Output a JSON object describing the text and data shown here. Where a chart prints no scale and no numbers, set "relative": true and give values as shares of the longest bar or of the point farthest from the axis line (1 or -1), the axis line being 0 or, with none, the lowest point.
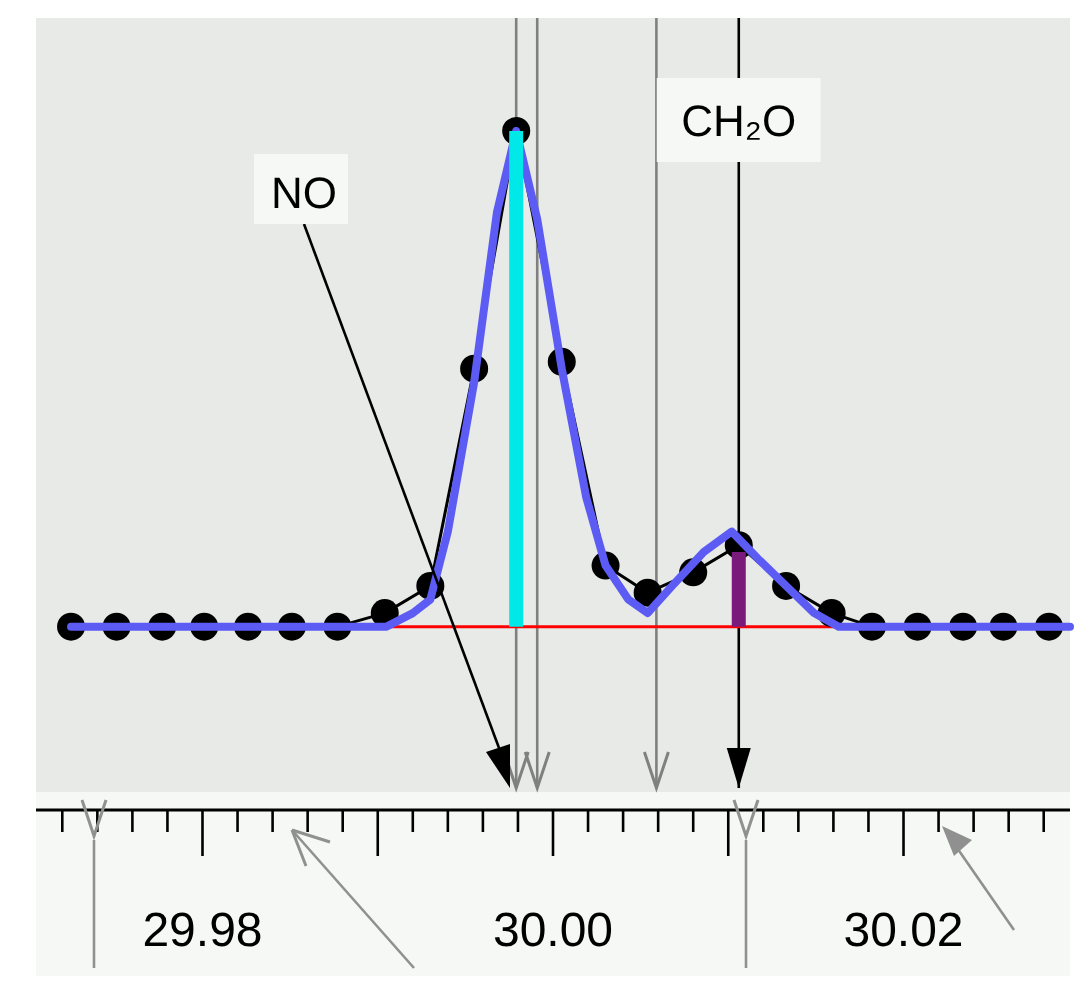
{
  "chart_data": {
    "type": "line",
    "relative": true,
    "tick_labels": "x",
    "grid": false,
    "xlim": [
      29.9705,
      30.0295
    ],
    "xticks": [
      {
        "value": 29.98,
        "label": "29.98"
      },
      {
        "value": 30.0,
        "label": "30.00"
      },
      {
        "value": 30.02,
        "label": "30.02"
      }
    ],
    "series": [
      {
        "color": "#00e8e8",
        "marker": "none",
        "x": [
          29.9979,
          29.9979
        ],
        "values": [
          0.27,
          1
        ]
      },
      {
        "color": "#7a1a7a",
        "marker": "none",
        "x": [
          30.0106,
          30.0106
        ],
        "values": [
          0.27,
          0.38
        ]
      },
      {
        "color": "#ff0000",
        "marker": "none",
        "x": [
          29.9905,
          30.016
        ],
        "values": [
          0.27,
          0.27
        ]
      },
      {
        "color": "#000000",
        "marker": "circle",
        "x": [
          29.9725,
          29.9751,
          29.9777,
          29.9801,
          29.9826,
          29.9851,
          29.9877,
          29.9904,
          29.993,
          29.9955,
          29.9979,
          30.0005,
          30.003,
          30.0054,
          30.008,
          30.0106,
          30.0133,
          30.0159,
          30.0182,
          30.0208,
          30.0234,
          30.0257,
          30.0283
        ],
        "values": [
          0.27,
          0.27,
          0.27,
          0.27,
          0.27,
          0.27,
          0.27,
          0.29,
          0.33,
          0.65,
          1,
          0.66,
          0.36,
          0.32,
          0.35,
          0.39,
          0.33,
          0.29,
          0.27,
          0.27,
          0.27,
          0.27,
          0.27
        ]
      },
      {
        "color": "#5c5cf5",
        "marker": "none",
        "x": [
          29.9725,
          29.9881,
          29.9905,
          29.992,
          29.993,
          29.994,
          29.9955,
          29.9968,
          29.9979,
          29.9991,
          30.0005,
          30.0019,
          30.003,
          30.0043,
          30.0054,
          30.0068,
          30.0086,
          30.0102,
          30.0117,
          30.0133,
          30.0149,
          30.0163,
          30.0181,
          30.0295
        ],
        "values": [
          0.27,
          0.27,
          0.27,
          0.29,
          0.31,
          0.41,
          0.63,
          0.88,
          1,
          0.87,
          0.65,
          0.46,
          0.36,
          0.31,
          0.29,
          0.33,
          0.38,
          0.41,
          0.37,
          0.33,
          0.29,
          0.27,
          0.27,
          0.27
        ]
      }
    ],
    "ref_lines": [
      {
        "axis": "x",
        "value": 29.9979,
        "color": "#808080"
      },
      {
        "axis": "x",
        "value": 29.9991,
        "color": "#808080"
      },
      {
        "axis": "x",
        "value": 30.0059,
        "color": "#808080"
      },
      {
        "axis": "x",
        "value": 30.0106,
        "color": "#000000",
        "label": "CH₂O"
      }
    ],
    "annotations": [
      "NO"
    ]
  }
}
